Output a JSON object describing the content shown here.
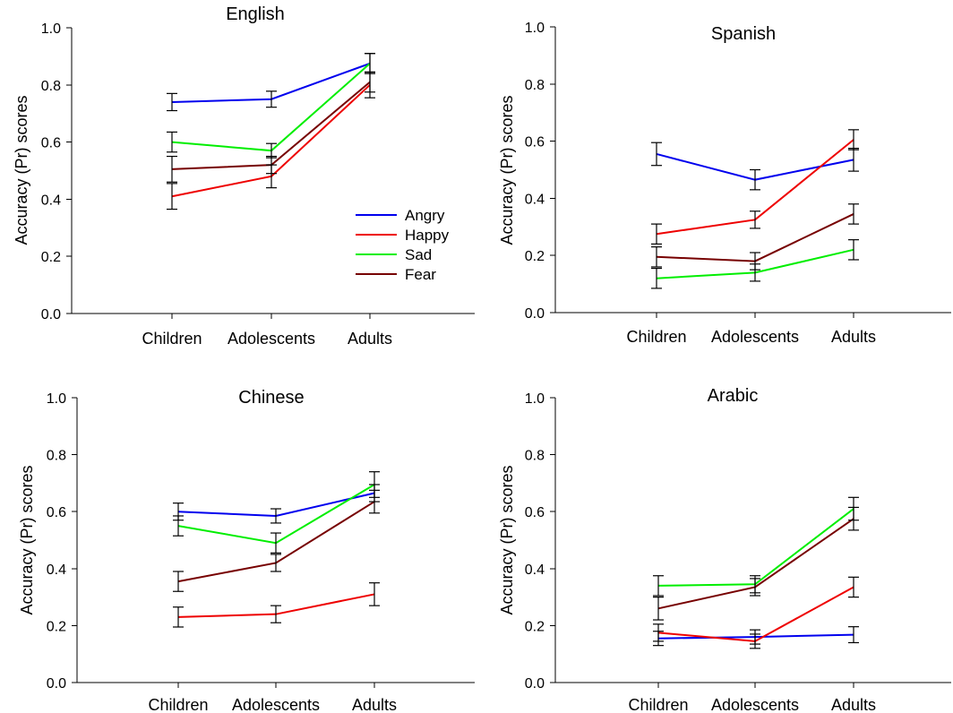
{
  "chart_data": [
    {
      "type": "line",
      "title": "English",
      "ylabel": "Accuracy (Pr) scores",
      "categories": [
        "Children",
        "Adolescents",
        "Adults"
      ],
      "ylim": [
        0,
        1.0
      ],
      "yticks": [
        "0.0",
        "0.2",
        "0.4",
        "0.6",
        "0.8",
        "1.0"
      ],
      "legend": "right-center",
      "series": [
        {
          "name": "Angry",
          "color": "#0000ee",
          "values": [
            0.74,
            0.75,
            0.875
          ],
          "errors": [
            0.03,
            0.028,
            0.035
          ]
        },
        {
          "name": "Happy",
          "color": "#ee0000",
          "values": [
            0.41,
            0.48,
            0.8
          ],
          "errors": [
            0.045,
            0.04,
            0.045
          ]
        },
        {
          "name": "Sad",
          "color": "#00ee00",
          "values": [
            0.6,
            0.57,
            0.875
          ],
          "errors": [
            0.035,
            0.025,
            0.035
          ]
        },
        {
          "name": "Fear",
          "color": "#770000",
          "values": [
            0.505,
            0.52,
            0.81
          ],
          "errors": [
            0.045,
            0.03,
            0.035
          ]
        }
      ]
    },
    {
      "type": "line",
      "title": "Spanish",
      "ylabel": "Accuracy (Pr) scores",
      "categories": [
        "Children",
        "Adolescents",
        "Adults"
      ],
      "ylim": [
        0,
        1.0
      ],
      "yticks": [
        "0.0",
        "0.2",
        "0.4",
        "0.6",
        "0.8",
        "1.0"
      ],
      "series": [
        {
          "name": "Angry",
          "color": "#0000ee",
          "values": [
            0.555,
            0.465,
            0.535
          ],
          "errors": [
            0.04,
            0.035,
            0.04
          ]
        },
        {
          "name": "Happy",
          "color": "#ee0000",
          "values": [
            0.275,
            0.325,
            0.605
          ],
          "errors": [
            0.035,
            0.03,
            0.035
          ]
        },
        {
          "name": "Sad",
          "color": "#00ee00",
          "values": [
            0.12,
            0.14,
            0.22
          ],
          "errors": [
            0.035,
            0.03,
            0.035
          ]
        },
        {
          "name": "Fear",
          "color": "#770000",
          "values": [
            0.195,
            0.18,
            0.345
          ],
          "errors": [
            0.035,
            0.03,
            0.035
          ]
        }
      ]
    },
    {
      "type": "line",
      "title": "Chinese",
      "ylabel": "Accuracy (Pr) scores",
      "categories": [
        "Children",
        "Adolescents",
        "Adults"
      ],
      "ylim": [
        0,
        1.0
      ],
      "yticks": [
        "0.0",
        "0.2",
        "0.4",
        "0.6",
        "0.8",
        "1.0"
      ],
      "series": [
        {
          "name": "Angry",
          "color": "#0000ee",
          "values": [
            0.6,
            0.585,
            0.665
          ],
          "errors": [
            0.03,
            0.025,
            0.03
          ]
        },
        {
          "name": "Happy",
          "color": "#ee0000",
          "values": [
            0.23,
            0.24,
            0.31
          ],
          "errors": [
            0.035,
            0.03,
            0.04
          ]
        },
        {
          "name": "Sad",
          "color": "#00ee00",
          "values": [
            0.55,
            0.49,
            0.695
          ],
          "errors": [
            0.035,
            0.035,
            0.045
          ]
        },
        {
          "name": "Fear",
          "color": "#770000",
          "values": [
            0.355,
            0.42,
            0.635
          ],
          "errors": [
            0.035,
            0.03,
            0.04
          ]
        }
      ]
    },
    {
      "type": "line",
      "title": "Arabic",
      "ylabel": "Accuracy (Pr) scores",
      "categories": [
        "Children",
        "Adolescents",
        "Adults"
      ],
      "ylim": [
        0,
        1.0
      ],
      "yticks": [
        "0.0",
        "0.2",
        "0.4",
        "0.6",
        "0.8",
        "1.0"
      ],
      "series": [
        {
          "name": "Angry",
          "color": "#0000ee",
          "values": [
            0.155,
            0.16,
            0.168
          ],
          "errors": [
            0.025,
            0.025,
            0.028
          ]
        },
        {
          "name": "Happy",
          "color": "#ee0000",
          "values": [
            0.175,
            0.145,
            0.335
          ],
          "errors": [
            0.03,
            0.025,
            0.035
          ]
        },
        {
          "name": "Sad",
          "color": "#00ee00",
          "values": [
            0.34,
            0.345,
            0.61
          ],
          "errors": [
            0.035,
            0.03,
            0.04
          ]
        },
        {
          "name": "Fear",
          "color": "#770000",
          "values": [
            0.26,
            0.335,
            0.575
          ],
          "errors": [
            0.04,
            0.03,
            0.04
          ]
        }
      ]
    }
  ]
}
